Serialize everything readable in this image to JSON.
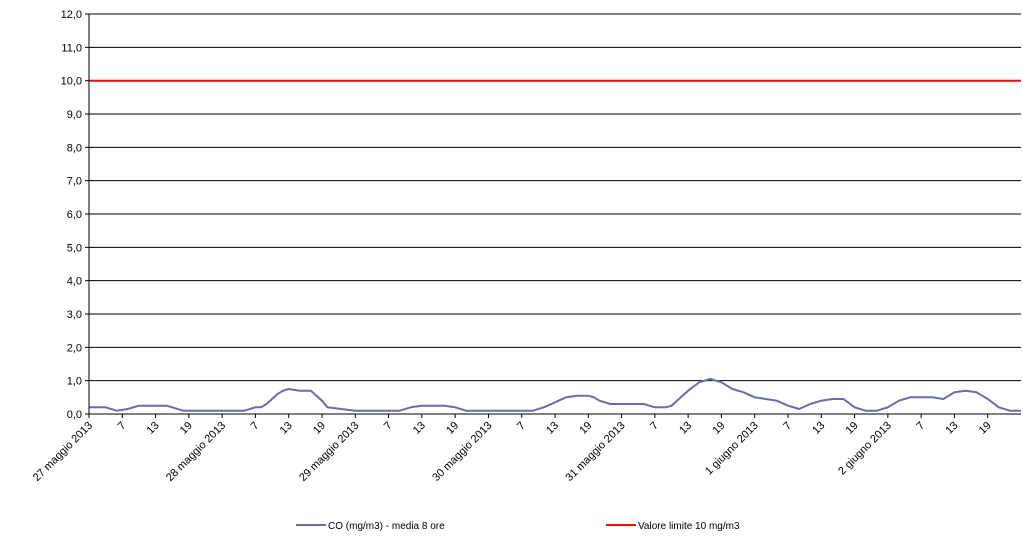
{
  "chart_data": {
    "type": "line",
    "title": "",
    "xlabel": "",
    "ylabel": "",
    "ylim": [
      0,
      12
    ],
    "yticks": [
      "0,0",
      "1,0",
      "2,0",
      "3,0",
      "4,0",
      "5,0",
      "6,0",
      "7,0",
      "8,0",
      "9,0",
      "10,0",
      "11,0",
      "12,0"
    ],
    "grid": true,
    "legend_position": "bottom",
    "x_tick_labels": [
      "27 maggio 2013",
      "7",
      "13",
      "19",
      "28 maggio 2013",
      "7",
      "13",
      "19",
      "29 maggio 2013",
      "7",
      "13",
      "19",
      "30 maggio 2013",
      "7",
      "13",
      "19",
      "31 maggio 2013",
      "7",
      "13",
      "19",
      "1 giugno 2013",
      "7",
      "13",
      "19",
      "2 giugno 2013",
      "7",
      "13",
      "19"
    ],
    "x_unit": "hours",
    "x_range": [
      0,
      168
    ],
    "series": [
      {
        "name": "CO (mg/m3) - media 8 ore",
        "color": "#6B6BA8",
        "x": [
          0,
          3,
          5,
          7,
          9,
          12,
          13,
          14,
          15,
          17,
          18,
          20,
          24,
          26,
          28,
          30,
          31,
          32,
          34,
          35,
          36,
          38,
          40,
          42,
          43,
          48,
          50,
          52,
          54,
          56,
          58,
          60,
          62,
          64,
          66,
          68,
          70,
          72,
          76,
          78,
          80,
          82,
          84,
          86,
          88,
          90,
          91,
          92,
          94,
          95,
          96,
          98,
          100,
          101,
          102,
          104,
          105,
          106,
          108,
          110,
          112,
          114,
          116,
          118,
          120,
          122,
          124,
          126,
          128,
          130,
          132,
          134,
          136,
          138,
          140,
          142,
          144,
          146,
          148,
          150,
          152,
          154,
          156,
          158,
          160,
          162,
          164,
          166,
          168
        ],
        "values": [
          0.2,
          0.2,
          0.1,
          0.15,
          0.25,
          0.25,
          0.25,
          0.25,
          0.2,
          0.1,
          0.1,
          0.1,
          0.1,
          0.1,
          0.1,
          0.2,
          0.2,
          0.3,
          0.6,
          0.7,
          0.75,
          0.7,
          0.7,
          0.4,
          0.2,
          0.1,
          0.1,
          0.1,
          0.1,
          0.1,
          0.2,
          0.25,
          0.25,
          0.25,
          0.2,
          0.1,
          0.1,
          0.1,
          0.1,
          0.1,
          0.1,
          0.2,
          0.35,
          0.5,
          0.55,
          0.55,
          0.5,
          0.4,
          0.3,
          0.3,
          0.3,
          0.3,
          0.3,
          0.25,
          0.2,
          0.2,
          0.25,
          0.4,
          0.7,
          0.95,
          1.05,
          0.95,
          0.75,
          0.65,
          0.5,
          0.45,
          0.4,
          0.25,
          0.15,
          0.3,
          0.4,
          0.45,
          0.45,
          0.2,
          0.1,
          0.1,
          0.2,
          0.4,
          0.5,
          0.5,
          0.5,
          0.45,
          0.65,
          0.7,
          0.65,
          0.45,
          0.2,
          0.1,
          0.1
        ]
      },
      {
        "name": "Valore limite 10 mg/m3",
        "color": "#FF0000",
        "x": [
          0,
          168
        ],
        "values": [
          10,
          10
        ]
      }
    ]
  }
}
